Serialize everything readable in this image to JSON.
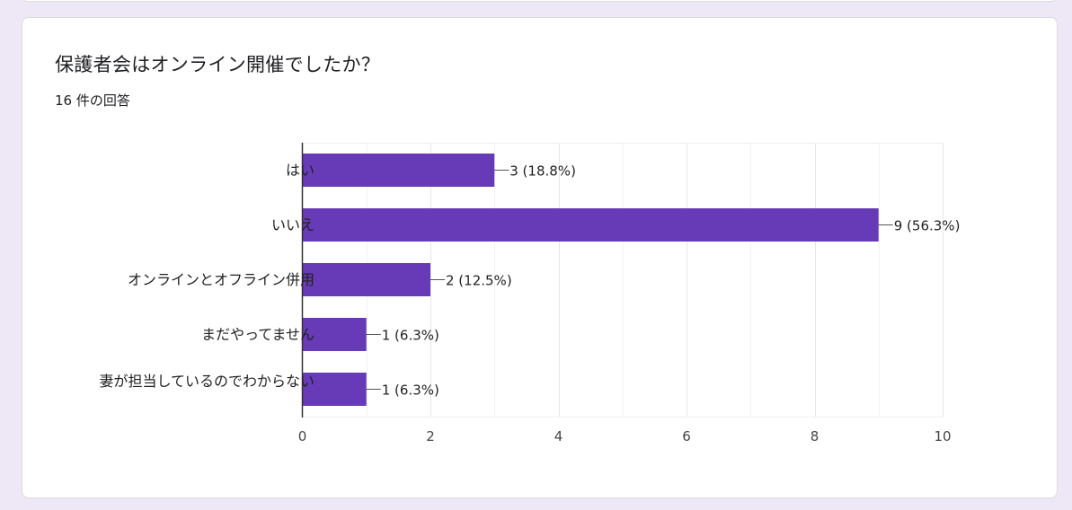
{
  "question": {
    "title": "保護者会はオンライン開催でしたか？",
    "response_count": "16 件の回答"
  },
  "colors": {
    "bar": "#673ab7",
    "page_background": "#ede7f6"
  },
  "chart_data": {
    "type": "bar",
    "orientation": "horizontal",
    "categories": [
      "はい",
      "いいえ",
      "オンラインとオフライン併用",
      "まだやってません",
      "妻が担当しているのでわからない"
    ],
    "values": [
      3,
      9,
      2,
      1,
      1
    ],
    "data_labels": [
      "3 (18.8%)",
      "9 (56.3%)",
      "2 (12.5%)",
      "1 (6.3%)",
      "1 (6.3%)"
    ],
    "xlim": [
      0,
      10
    ],
    "x_ticks": [
      "0",
      "2",
      "4",
      "6",
      "8",
      "10"
    ],
    "grid": true
  }
}
